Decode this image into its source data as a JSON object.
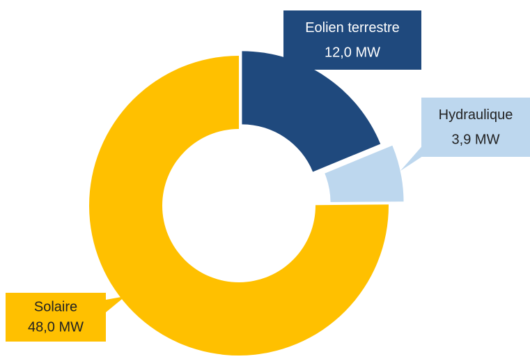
{
  "chart_data": {
    "type": "donut",
    "categories": [
      "Eolien terrestre",
      "Hydraulique",
      "Solaire"
    ],
    "values": [
      12.0,
      3.9,
      48.0
    ],
    "value_labels": [
      "12,0 MW",
      "3,9 MW",
      "48,0 MW"
    ],
    "colors": [
      "#1f497d",
      "#bdd7ee",
      "#ffc000"
    ]
  }
}
